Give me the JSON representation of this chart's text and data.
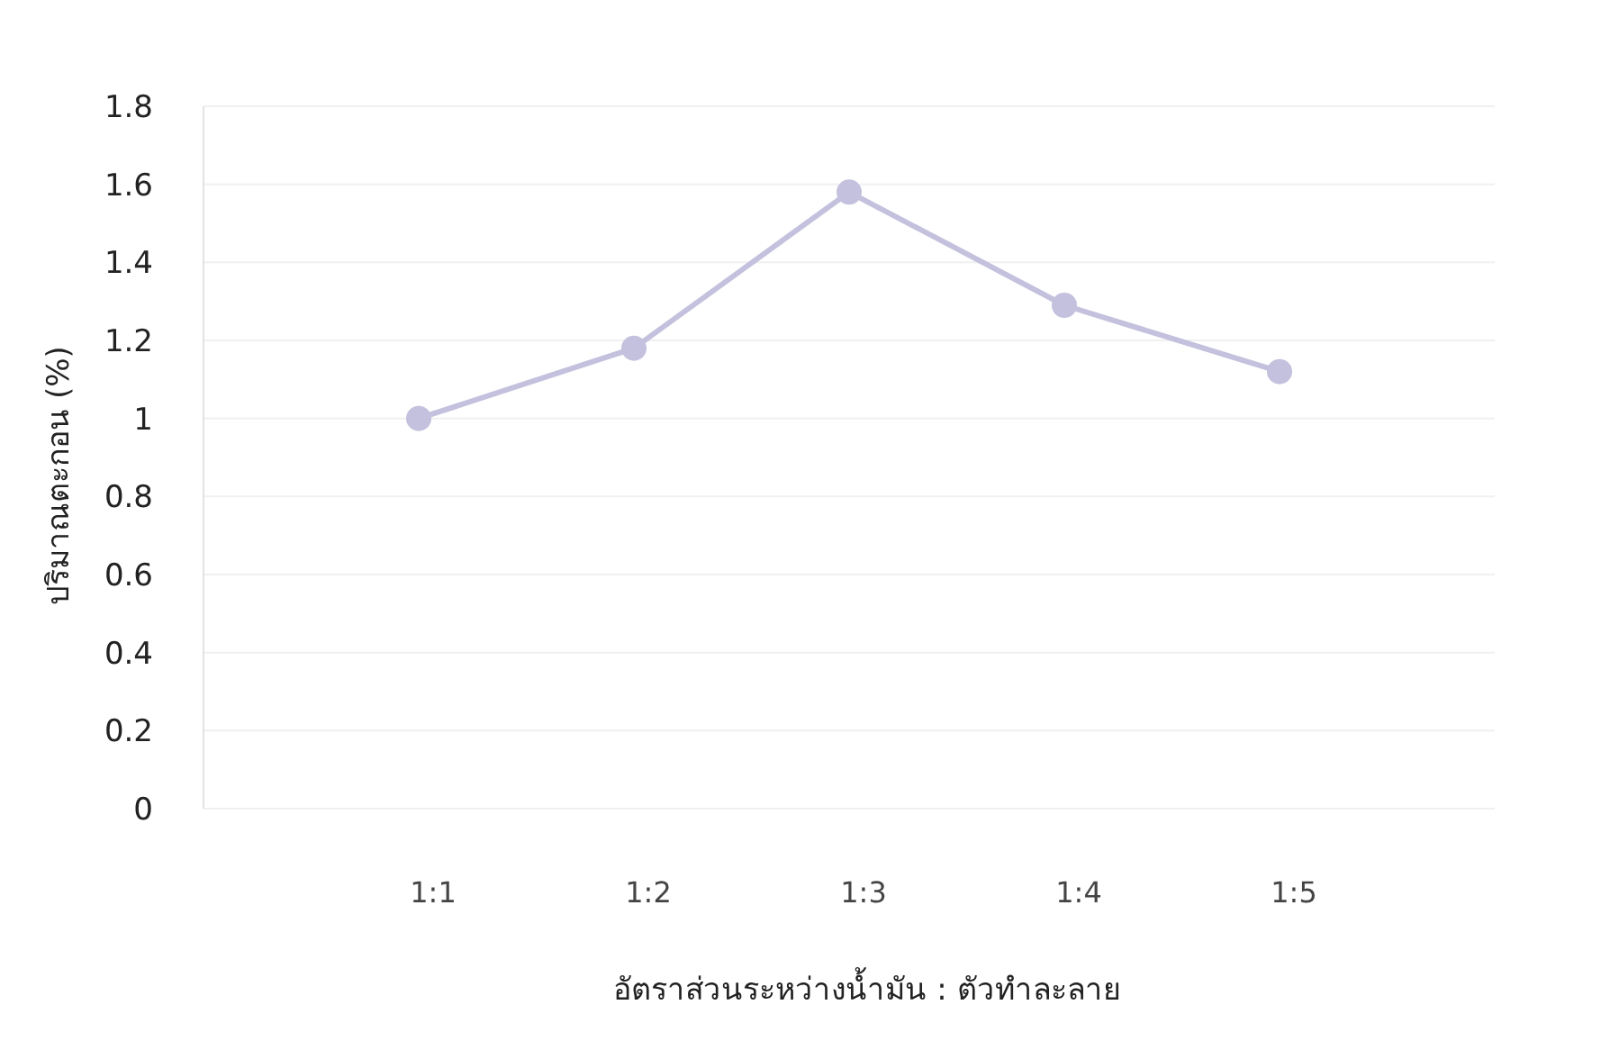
{
  "chart_data": {
    "type": "line",
    "xlabel": "อัตราส่วนระหว่างน้ำมัน : ตัวทำละลาย",
    "ylabel": "ปริมาณตะกอน (%)",
    "categories": [
      "1:1",
      "1:2",
      "1:3",
      "1:4",
      "1:5"
    ],
    "series": [
      {
        "color": "#c3c1dd",
        "values": [
          1.0,
          1.18,
          1.58,
          1.29,
          1.12
        ]
      }
    ],
    "ylim": [
      0,
      1.8
    ],
    "yticks": [
      0,
      0.2,
      0.4,
      0.6,
      0.8,
      1,
      1.2,
      1.4,
      1.6,
      1.8
    ],
    "grid": "y",
    "marker": "circle",
    "line_style": "solid"
  }
}
